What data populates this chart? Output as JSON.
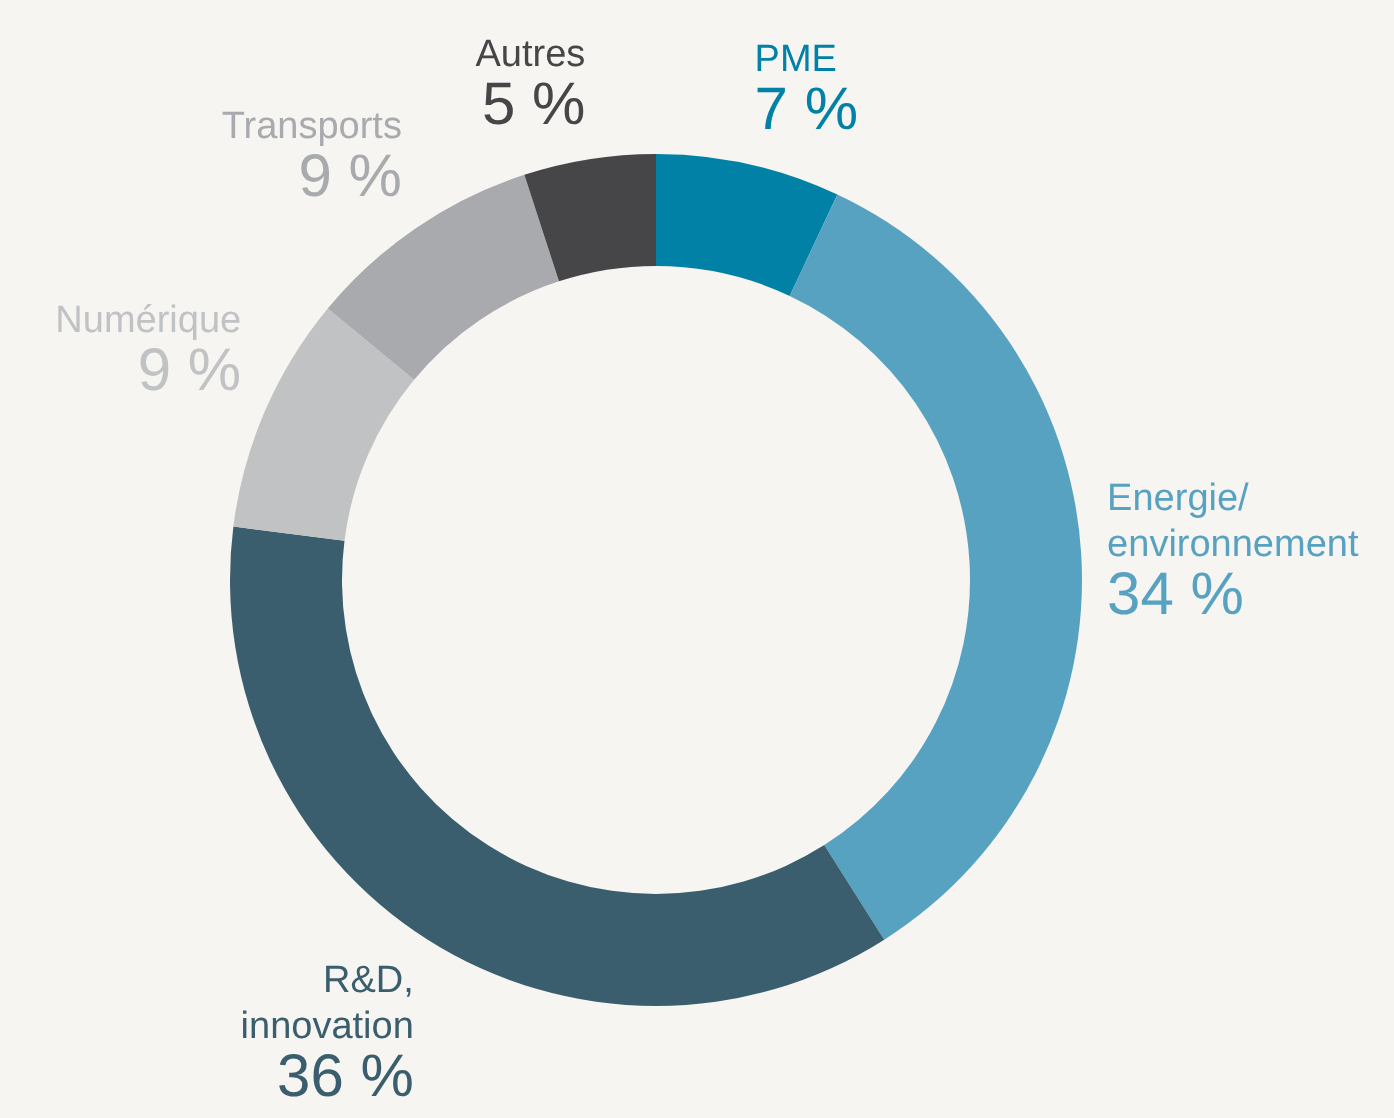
{
  "chart_data": {
    "type": "donut",
    "categories": [
      "PME",
      "Energie/ environnement",
      "R&D, innovation",
      "Numérique",
      "Transports",
      "Autres"
    ],
    "values": [
      7,
      34,
      36,
      9,
      9,
      5
    ],
    "value_labels": [
      "7 %",
      "34 %",
      "36 %",
      "9 %",
      "9 %",
      "5 %"
    ],
    "colors": [
      "#0081a5",
      "#58a2c1",
      "#3a5e6d",
      "#c1c2c4",
      "#a9aaad",
      "#464648"
    ]
  }
}
